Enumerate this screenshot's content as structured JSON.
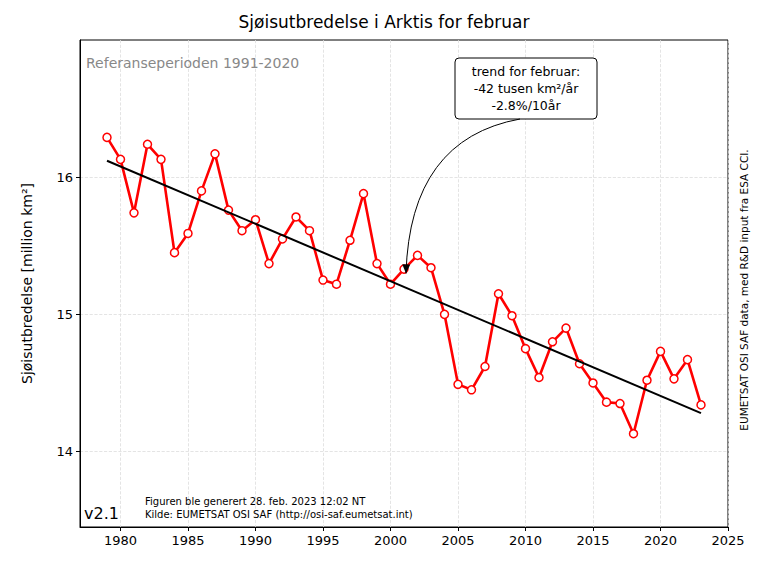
{
  "chart_data": {
    "type": "line",
    "title": "Sjøisutbredelse i Arktis for februar",
    "subtitle": "Referanseperioden 1991-2020",
    "y_label": "Sjøisutbredelse [million km²]",
    "x": [
      1979,
      1980,
      1981,
      1982,
      1983,
      1984,
      1985,
      1986,
      1987,
      1988,
      1989,
      1990,
      1991,
      1992,
      1993,
      1994,
      1995,
      1996,
      1997,
      1998,
      1999,
      2000,
      2001,
      2002,
      2003,
      2004,
      2005,
      2006,
      2007,
      2008,
      2009,
      2010,
      2011,
      2012,
      2013,
      2014,
      2015,
      2016,
      2017,
      2018,
      2019,
      2020,
      2021,
      2022,
      2023
    ],
    "values": [
      16.29,
      16.13,
      15.74,
      16.24,
      16.13,
      15.45,
      15.59,
      15.9,
      16.17,
      15.76,
      15.61,
      15.69,
      15.37,
      15.55,
      15.71,
      15.61,
      15.25,
      15.22,
      15.54,
      15.88,
      15.37,
      15.22,
      15.33,
      15.43,
      15.34,
      15.0,
      14.49,
      14.45,
      14.62,
      15.15,
      14.99,
      14.75,
      14.54,
      14.8,
      14.9,
      14.64,
      14.5,
      14.36,
      14.35,
      14.13,
      14.52,
      14.73,
      14.53,
      14.67,
      14.34
    ],
    "color": "#ff0000",
    "marker": "circle",
    "line_style": "solid",
    "trend": {
      "x": [
        1979,
        2023
      ],
      "values": [
        16.12,
        14.28
      ],
      "color": "#000000"
    },
    "annotation": {
      "lines": [
        "trend for februar:",
        "-42 tusen km²/år",
        "-2.8%/10år"
      ],
      "x": 2001,
      "y": 15.24
    },
    "version": "v2.1",
    "footer": [
      "Figuren ble generert 28. feb. 2023 12:02 NT",
      "Kilde: EUMETSAT OSI SAF (http://osi-saf.eumetsat.int)"
    ],
    "credit": "EUMETSAT OSI SAF data, med R&D input fra ESA CCI.",
    "xlim": [
      1977,
      2025
    ],
    "xticks": [
      1980,
      1985,
      1990,
      1995,
      2000,
      2005,
      2010,
      2015,
      2020,
      2025
    ],
    "ylim": [
      13.45,
      17.0
    ],
    "yticks": [
      14,
      15,
      16
    ],
    "grid": true
  }
}
